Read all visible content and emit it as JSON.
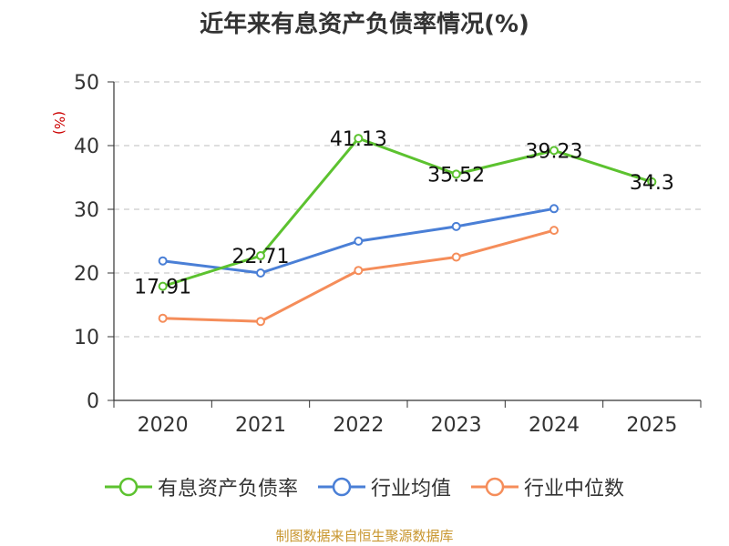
{
  "colors": {
    "series_1": "#5cc22f",
    "series_2": "#4a7fd6",
    "series_3": "#f58d5a",
    "unit": "#cc0000",
    "source": "#c8962e",
    "grid": "#bdbdbd"
  },
  "chart_data": {
    "type": "line",
    "title": "近年来有息资产负债率情况(%)",
    "unit_label": "(%)",
    "categories": [
      "2020",
      "2021",
      "2022",
      "2023",
      "2024",
      "2025"
    ],
    "ylim": [
      0,
      50
    ],
    "yticks": [
      "0",
      "10",
      "20",
      "30",
      "40",
      "50"
    ],
    "grid": "horizontal-dashed",
    "legend_position": "bottom",
    "series": [
      {
        "name": "有息资产负债率",
        "values": [
          17.91,
          22.71,
          41.13,
          35.52,
          39.23,
          34.3
        ],
        "labels": [
          "17.91",
          "22.71",
          "41.13",
          "35.52",
          "39.23",
          "34.3"
        ]
      },
      {
        "name": "行业均值",
        "values": [
          21.9,
          20.0,
          25.0,
          27.3,
          30.1,
          null
        ]
      },
      {
        "name": "行业中位数",
        "values": [
          12.9,
          12.4,
          20.4,
          22.5,
          26.7,
          null
        ]
      }
    ]
  },
  "source_text": "制图数据来自恒生聚源数据库"
}
